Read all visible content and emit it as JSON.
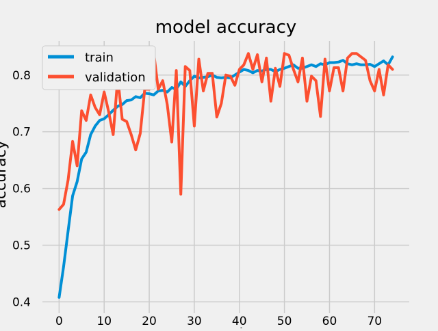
{
  "chart_data": {
    "type": "line",
    "title": "model accuracy",
    "xlabel": "epoch",
    "ylabel": "accuracy",
    "xlim": [
      -3.7,
      77.7
    ],
    "ylim": [
      0.38,
      0.86
    ],
    "xticks": [
      0,
      10,
      20,
      30,
      40,
      50,
      60,
      70
    ],
    "yticks": [
      0.4,
      0.5,
      0.6,
      0.7,
      0.8
    ],
    "tick_labels_x": [
      "0",
      "10",
      "20",
      "30",
      "40",
      "50",
      "60",
      "70"
    ],
    "tick_labels_y": [
      "0.4",
      "0.5",
      "0.6",
      "0.7",
      "0.8"
    ],
    "grid": true,
    "legend": "upper left",
    "x": [
      0,
      1,
      2,
      3,
      4,
      5,
      6,
      7,
      8,
      9,
      10,
      11,
      12,
      13,
      14,
      15,
      16,
      17,
      18,
      19,
      20,
      21,
      22,
      23,
      24,
      25,
      26,
      27,
      28,
      29,
      30,
      31,
      32,
      33,
      34,
      35,
      36,
      37,
      38,
      39,
      40,
      41,
      42,
      43,
      44,
      45,
      46,
      47,
      48,
      49,
      50,
      51,
      52,
      53,
      54,
      55,
      56,
      57,
      58,
      59,
      60,
      61,
      62,
      63,
      64,
      65,
      66,
      67,
      68,
      69,
      70,
      71,
      72,
      73,
      74
    ],
    "series": [
      {
        "name": "train",
        "color": "#008fd5",
        "values": [
          0.408,
          0.462,
          0.525,
          0.587,
          0.612,
          0.652,
          0.664,
          0.695,
          0.71,
          0.72,
          0.723,
          0.73,
          0.738,
          0.745,
          0.748,
          0.755,
          0.756,
          0.762,
          0.76,
          0.768,
          0.767,
          0.765,
          0.772,
          0.773,
          0.77,
          0.778,
          0.775,
          0.788,
          0.78,
          0.79,
          0.798,
          0.795,
          0.796,
          0.797,
          0.8,
          0.796,
          0.795,
          0.796,
          0.795,
          0.8,
          0.805,
          0.81,
          0.808,
          0.804,
          0.808,
          0.807,
          0.81,
          0.81,
          0.806,
          0.81,
          0.812,
          0.815,
          0.818,
          0.812,
          0.812,
          0.815,
          0.818,
          0.815,
          0.82,
          0.818,
          0.822,
          0.822,
          0.823,
          0.826,
          0.82,
          0.818,
          0.82,
          0.818,
          0.818,
          0.819,
          0.815,
          0.82,
          0.825,
          0.818,
          0.832
        ]
      },
      {
        "name": "validation",
        "color": "#fc4f30",
        "values": [
          0.563,
          0.572,
          0.615,
          0.683,
          0.64,
          0.737,
          0.72,
          0.765,
          0.743,
          0.73,
          0.77,
          0.735,
          0.695,
          0.795,
          0.722,
          0.718,
          0.695,
          0.668,
          0.697,
          0.775,
          0.775,
          0.84,
          0.775,
          0.79,
          0.748,
          0.682,
          0.808,
          0.59,
          0.815,
          0.808,
          0.71,
          0.828,
          0.772,
          0.803,
          0.803,
          0.726,
          0.75,
          0.8,
          0.798,
          0.782,
          0.81,
          0.818,
          0.838,
          0.81,
          0.836,
          0.788,
          0.83,
          0.754,
          0.812,
          0.78,
          0.838,
          0.835,
          0.81,
          0.788,
          0.83,
          0.754,
          0.798,
          0.79,
          0.727,
          0.828,
          0.772,
          0.813,
          0.813,
          0.772,
          0.83,
          0.838,
          0.838,
          0.832,
          0.826,
          0.79,
          0.772,
          0.81,
          0.765,
          0.818,
          0.81
        ]
      }
    ]
  }
}
